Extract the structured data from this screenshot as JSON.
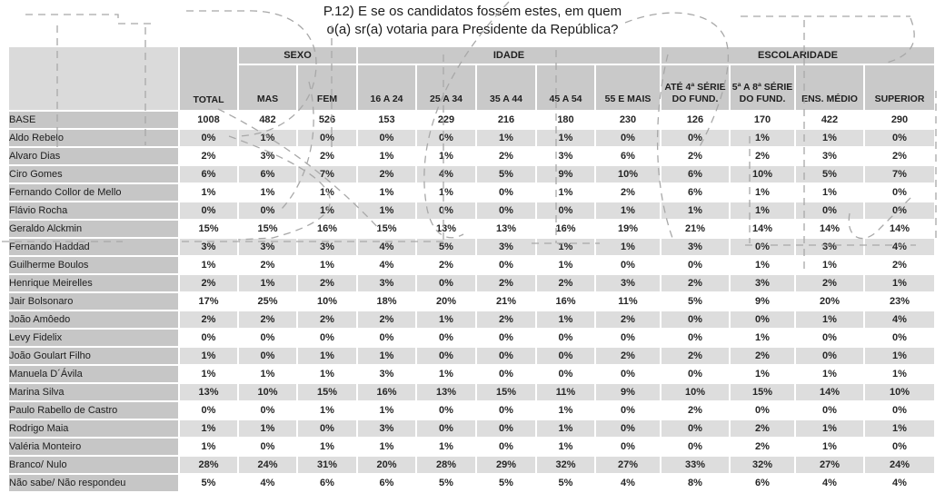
{
  "title": {
    "line1": "P.12) E se os candidatos fossem estes, em quem",
    "line2": "o(a) sr(a) votaria para Presidente da República?"
  },
  "colors": {
    "header_gray": "#c9c9c9",
    "corner_gray": "#dadada",
    "label_gray": "#c6c6c6",
    "stripe_gray": "#dddddd",
    "scribble_gray": "#a8a8a8"
  },
  "chart_data": {
    "type": "table",
    "title": "P.12) E se os candidatos fossem estes, em quem o(a) sr(a) votaria para Presidente da República?",
    "groups": [
      {
        "label": "SEXO",
        "span": 2
      },
      {
        "label": "IDADE",
        "span": 5
      },
      {
        "label": "ESCOLARIDADE",
        "span": 4
      }
    ],
    "columns": [
      "TOTAL",
      "MAS",
      "FEM",
      "16 A 24",
      "25 A 34",
      "35 A 44",
      "45 A 54",
      "55 E MAIS",
      "ATÉ 4ª SÉRIE\nDO FUND.",
      "5ª A 8ª SÉRIE\nDO FUND.",
      "ENS. MÉDIO",
      "SUPERIOR"
    ],
    "rows": [
      {
        "label": "BASE",
        "values": [
          "1008",
          "482",
          "526",
          "153",
          "229",
          "216",
          "180",
          "230",
          "126",
          "170",
          "422",
          "290"
        ]
      },
      {
        "label": "Aldo Rebelo",
        "values": [
          "0%",
          "1%",
          "0%",
          "0%",
          "0%",
          "1%",
          "1%",
          "0%",
          "0%",
          "1%",
          "1%",
          "0%"
        ]
      },
      {
        "label": "Alvaro Dias",
        "values": [
          "2%",
          "3%",
          "2%",
          "1%",
          "1%",
          "2%",
          "3%",
          "6%",
          "2%",
          "2%",
          "3%",
          "2%"
        ]
      },
      {
        "label": "Ciro Gomes",
        "values": [
          "6%",
          "6%",
          "7%",
          "2%",
          "4%",
          "5%",
          "9%",
          "10%",
          "6%",
          "10%",
          "5%",
          "7%"
        ]
      },
      {
        "label": "Fernando Collor de Mello",
        "values": [
          "1%",
          "1%",
          "1%",
          "1%",
          "1%",
          "0%",
          "1%",
          "2%",
          "6%",
          "1%",
          "1%",
          "0%"
        ]
      },
      {
        "label": "Flávio Rocha",
        "values": [
          "0%",
          "0%",
          "1%",
          "1%",
          "0%",
          "0%",
          "0%",
          "1%",
          "1%",
          "1%",
          "0%",
          "0%"
        ]
      },
      {
        "label": "Geraldo Alckmin",
        "values": [
          "15%",
          "15%",
          "16%",
          "15%",
          "13%",
          "13%",
          "16%",
          "19%",
          "21%",
          "14%",
          "14%",
          "14%"
        ]
      },
      {
        "label": "Fernando Haddad",
        "values": [
          "3%",
          "3%",
          "3%",
          "4%",
          "5%",
          "3%",
          "1%",
          "1%",
          "3%",
          "0%",
          "3%",
          "4%"
        ]
      },
      {
        "label": "Guilherme Boulos",
        "values": [
          "1%",
          "2%",
          "1%",
          "4%",
          "2%",
          "0%",
          "1%",
          "0%",
          "0%",
          "1%",
          "1%",
          "2%"
        ]
      },
      {
        "label": "Henrique Meirelles",
        "values": [
          "2%",
          "1%",
          "2%",
          "3%",
          "0%",
          "2%",
          "2%",
          "3%",
          "2%",
          "3%",
          "2%",
          "1%"
        ]
      },
      {
        "label": "Jair Bolsonaro",
        "values": [
          "17%",
          "25%",
          "10%",
          "18%",
          "20%",
          "21%",
          "16%",
          "11%",
          "5%",
          "9%",
          "20%",
          "23%"
        ]
      },
      {
        "label": "João Amôedo",
        "values": [
          "2%",
          "2%",
          "2%",
          "2%",
          "1%",
          "2%",
          "1%",
          "2%",
          "0%",
          "0%",
          "1%",
          "4%"
        ]
      },
      {
        "label": "Levy Fidelix",
        "values": [
          "0%",
          "0%",
          "0%",
          "0%",
          "0%",
          "0%",
          "0%",
          "0%",
          "0%",
          "1%",
          "0%",
          "0%"
        ]
      },
      {
        "label": "João Goulart Filho",
        "values": [
          "1%",
          "0%",
          "1%",
          "1%",
          "0%",
          "0%",
          "0%",
          "2%",
          "2%",
          "2%",
          "0%",
          "1%"
        ]
      },
      {
        "label": "Manuela D´Ávila",
        "values": [
          "1%",
          "1%",
          "1%",
          "3%",
          "1%",
          "0%",
          "0%",
          "0%",
          "0%",
          "1%",
          "1%",
          "1%"
        ]
      },
      {
        "label": "Marina Silva",
        "values": [
          "13%",
          "10%",
          "15%",
          "16%",
          "13%",
          "15%",
          "11%",
          "9%",
          "10%",
          "15%",
          "14%",
          "10%"
        ]
      },
      {
        "label": "Paulo Rabello de Castro",
        "values": [
          "0%",
          "0%",
          "1%",
          "1%",
          "0%",
          "0%",
          "1%",
          "0%",
          "2%",
          "0%",
          "0%",
          "0%"
        ]
      },
      {
        "label": "Rodrigo Maia",
        "values": [
          "1%",
          "1%",
          "0%",
          "3%",
          "0%",
          "0%",
          "1%",
          "0%",
          "0%",
          "2%",
          "1%",
          "1%"
        ]
      },
      {
        "label": "Valéria Monteiro",
        "values": [
          "1%",
          "0%",
          "1%",
          "1%",
          "1%",
          "0%",
          "1%",
          "0%",
          "0%",
          "2%",
          "1%",
          "0%"
        ]
      },
      {
        "label": "Branco/ Nulo",
        "values": [
          "28%",
          "24%",
          "31%",
          "20%",
          "28%",
          "29%",
          "32%",
          "27%",
          "33%",
          "32%",
          "27%",
          "24%"
        ]
      },
      {
        "label": "Não sabe/ Não respondeu",
        "values": [
          "5%",
          "4%",
          "6%",
          "6%",
          "5%",
          "5%",
          "5%",
          "4%",
          "8%",
          "6%",
          "4%",
          "4%"
        ]
      }
    ]
  }
}
